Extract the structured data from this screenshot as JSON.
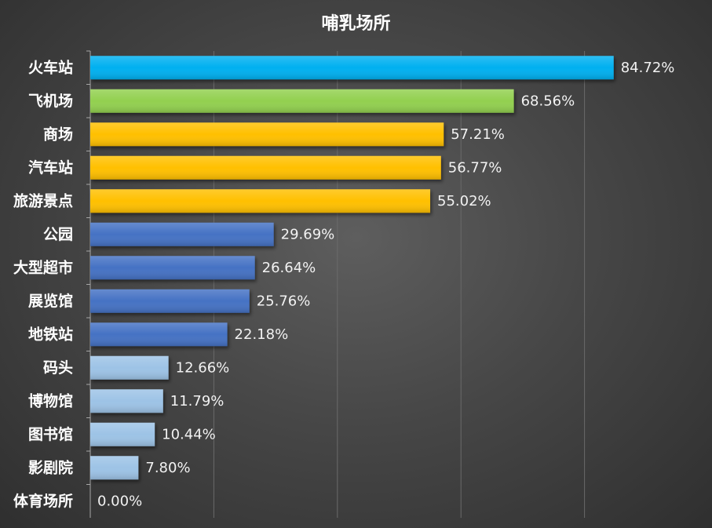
{
  "chart_data": {
    "type": "bar",
    "orientation": "horizontal",
    "title": "哺乳场所",
    "xlabel": "",
    "ylabel": "",
    "xlim": [
      0,
      90
    ],
    "grid": true,
    "categories": [
      "火车站",
      "飞机场",
      "商场",
      "汽车站",
      "旅游景点",
      "公园",
      "大型超市",
      "展览馆",
      "地铁站",
      "码头",
      "博物馆",
      "图书馆",
      "影剧院",
      "体育场所"
    ],
    "values": [
      84.72,
      68.56,
      57.21,
      56.77,
      55.02,
      29.69,
      26.64,
      25.76,
      22.18,
      12.66,
      11.79,
      10.44,
      7.8,
      0.0
    ],
    "value_labels": [
      "84.72%",
      "68.56%",
      "57.21%",
      "56.77%",
      "55.02%",
      "29.69%",
      "26.64%",
      "25.76%",
      "22.18%",
      "12.66%",
      "11.79%",
      "10.44%",
      "7.80%",
      "0.00%"
    ],
    "bar_colors": [
      "#00b0f0",
      "#92d050",
      "#ffc000",
      "#ffc000",
      "#ffc000",
      "#4472c4",
      "#4472c4",
      "#4472c4",
      "#4472c4",
      "#9dc3e6",
      "#9dc3e6",
      "#9dc3e6",
      "#9dc3e6",
      "#9dc3e6"
    ]
  }
}
